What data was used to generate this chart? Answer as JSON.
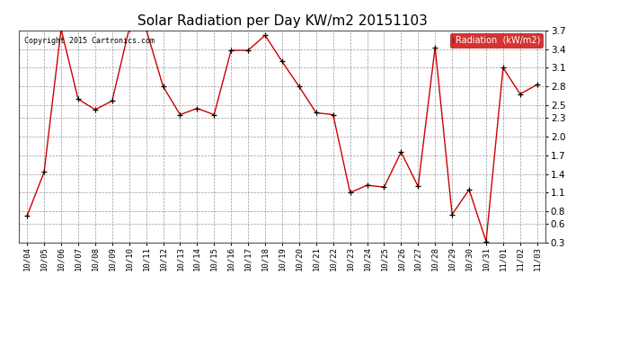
{
  "title": "Solar Radiation per Day KW/m2 20151103",
  "copyright_text": "Copyright 2015 Cartronics.com",
  "legend_label": "Radiation  (kW/m2)",
  "dates": [
    "10/04",
    "10/05",
    "10/06",
    "10/07",
    "10/08",
    "10/09",
    "10/10",
    "10/11",
    "10/12",
    "10/13",
    "10/14",
    "10/15",
    "10/16",
    "10/17",
    "10/18",
    "10/19",
    "10/20",
    "10/21",
    "10/22",
    "10/23",
    "10/24",
    "10/25",
    "10/26",
    "10/27",
    "10/28",
    "10/29",
    "10/30",
    "10/31",
    "11/01",
    "11/02",
    "11/03"
  ],
  "values": [
    0.73,
    1.43,
    3.72,
    2.6,
    2.43,
    2.57,
    3.72,
    3.72,
    2.8,
    2.35,
    2.45,
    2.35,
    3.38,
    3.38,
    3.62,
    3.2,
    2.8,
    2.38,
    2.35,
    1.1,
    1.22,
    1.19,
    1.75,
    1.2,
    3.43,
    0.75,
    1.15,
    0.32,
    3.1,
    2.68,
    2.83
  ],
  "line_color": "#cc0000",
  "marker_color": "#000000",
  "bg_color": "#ffffff",
  "grid_color": "#999999",
  "ylim": [
    0.3,
    3.7
  ],
  "yticks": [
    0.3,
    0.6,
    0.8,
    1.1,
    1.4,
    1.7,
    2.0,
    2.3,
    2.5,
    2.8,
    3.1,
    3.4,
    3.7
  ],
  "legend_bg": "#cc0000",
  "legend_fg": "#ffffff",
  "fig_width": 6.9,
  "fig_height": 3.75,
  "title_fontsize": 11,
  "tick_fontsize": 6.5,
  "ytick_fontsize": 7.5
}
